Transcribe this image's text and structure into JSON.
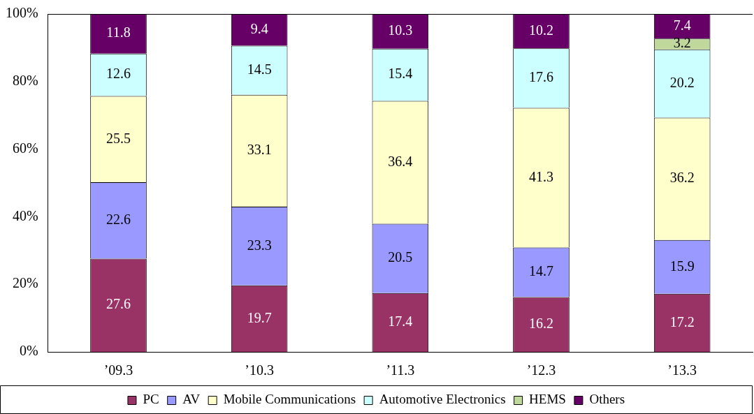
{
  "chart_data": {
    "type": "bar",
    "stacked": true,
    "categories": [
      "’09.3",
      "’10.3",
      "’11.3",
      "’12.3",
      "’13.3"
    ],
    "series": [
      {
        "name": "PC",
        "color": "#993366",
        "values": [
          27.6,
          19.7,
          17.4,
          16.2,
          17.2
        ]
      },
      {
        "name": "AV",
        "color": "#9999ff",
        "values": [
          22.6,
          23.3,
          20.5,
          14.7,
          15.9
        ]
      },
      {
        "name": "Mobile Communications",
        "color": "#ffffcc",
        "values": [
          25.5,
          33.1,
          36.4,
          41.3,
          36.2
        ]
      },
      {
        "name": "Automotive Electronics",
        "color": "#ccffff",
        "values": [
          12.6,
          14.5,
          15.4,
          17.6,
          20.2
        ]
      },
      {
        "name": "HEMS",
        "color": "#c0d89c",
        "values": [
          null,
          null,
          null,
          null,
          3.2
        ]
      },
      {
        "name": "Others",
        "color": "#660066",
        "values": [
          11.8,
          9.4,
          10.3,
          10.2,
          7.4
        ]
      }
    ],
    "ylim": [
      0,
      100
    ],
    "yticks": [
      {
        "value": 0,
        "label": "0%"
      },
      {
        "value": 20,
        "label": "20%"
      },
      {
        "value": 40,
        "label": "40%"
      },
      {
        "value": 60,
        "label": "60%"
      },
      {
        "value": 80,
        "label": "80%"
      },
      {
        "value": 100,
        "label": "100%"
      }
    ],
    "grid": false,
    "legend": "bottom",
    "data_labels": true
  }
}
